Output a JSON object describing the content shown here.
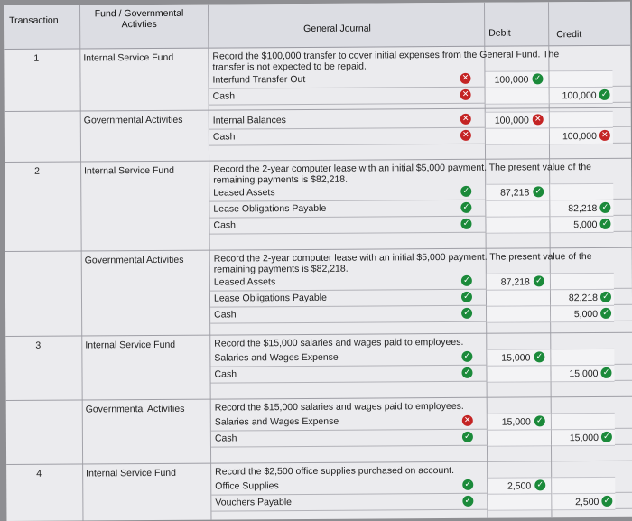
{
  "header": {
    "transaction": "Transaction",
    "fund": "Fund / Governmental\nActivties",
    "journal": "General Journal",
    "debit": "Debit",
    "credit": "Credit"
  },
  "entries": [
    {
      "txn": "1",
      "fund": "Internal Service Fund",
      "desc": "Record the $100,000 transfer to cover initial expenses from the General Fund. The transfer is not expected to be repaid.",
      "lines": [
        {
          "account": "Interfund Transfer Out",
          "status": "wrong",
          "debit": "100,000",
          "debit_status": "correct",
          "credit": "",
          "credit_status": ""
        },
        {
          "account": "Cash",
          "status": "wrong",
          "debit": "",
          "debit_status": "",
          "credit": "100,000",
          "credit_status": "correct"
        }
      ]
    },
    {
      "txn": "",
      "fund": "Governmental Activities",
      "desc": "",
      "lines": [
        {
          "account": "Internal Balances",
          "status": "wrong",
          "debit": "100,000",
          "debit_status": "wrong",
          "credit": "",
          "credit_status": ""
        },
        {
          "account": "Cash",
          "status": "wrong",
          "debit": "",
          "debit_status": "",
          "credit": "100,000",
          "credit_status": "wrong"
        }
      ]
    },
    {
      "txn": "2",
      "fund": "Internal Service Fund",
      "desc": "Record the 2-year computer lease with an initial $5,000 payment. The present value of the remaining payments is $82,218.",
      "lines": [
        {
          "account": "Leased Assets",
          "status": "correct",
          "debit": "87,218",
          "debit_status": "correct",
          "credit": "",
          "credit_status": ""
        },
        {
          "account": "Lease Obligations Payable",
          "status": "correct",
          "debit": "",
          "debit_status": "",
          "credit": "82,218",
          "credit_status": "correct"
        },
        {
          "account": "Cash",
          "status": "correct",
          "debit": "",
          "debit_status": "",
          "credit": "5,000",
          "credit_status": "correct"
        }
      ]
    },
    {
      "txn": "",
      "fund": "Governmental Activities",
      "desc": "Record the 2-year computer lease with an initial $5,000 payment. The present value of the remaining payments is $82,218.",
      "lines": [
        {
          "account": "Leased Assets",
          "status": "correct",
          "debit": "87,218",
          "debit_status": "correct",
          "credit": "",
          "credit_status": ""
        },
        {
          "account": "Lease Obligations Payable",
          "status": "correct",
          "debit": "",
          "debit_status": "",
          "credit": "82,218",
          "credit_status": "correct"
        },
        {
          "account": "Cash",
          "status": "correct",
          "debit": "",
          "debit_status": "",
          "credit": "5,000",
          "credit_status": "correct"
        }
      ]
    },
    {
      "txn": "3",
      "fund": "Internal Service Fund",
      "desc": "Record the $15,000 salaries and wages paid to employees.",
      "lines": [
        {
          "account": "Salaries and Wages Expense",
          "status": "correct",
          "debit": "15,000",
          "debit_status": "correct",
          "credit": "",
          "credit_status": ""
        },
        {
          "account": "Cash",
          "status": "correct",
          "debit": "",
          "debit_status": "",
          "credit": "15,000",
          "credit_status": "correct"
        }
      ]
    },
    {
      "txn": "",
      "fund": "Governmental Activities",
      "desc": "Record the $15,000 salaries and wages paid to employees.",
      "lines": [
        {
          "account": "Salaries and Wages Expense",
          "status": "wrong",
          "debit": "15,000",
          "debit_status": "correct",
          "credit": "",
          "credit_status": ""
        },
        {
          "account": "Cash",
          "status": "correct",
          "debit": "",
          "debit_status": "",
          "credit": "15,000",
          "credit_status": "correct"
        }
      ]
    },
    {
      "txn": "4",
      "fund": "Internal Service Fund",
      "desc": "Record the $2,500 office supplies purchased on account.",
      "lines": [
        {
          "account": "Office Supplies",
          "status": "correct",
          "debit": "2,500",
          "debit_status": "correct",
          "credit": "",
          "credit_status": ""
        },
        {
          "account": "Vouchers Payable",
          "status": "correct",
          "debit": "",
          "debit_status": "",
          "credit": "2,500",
          "credit_status": "correct"
        }
      ]
    }
  ],
  "icons": {
    "correct": "check-circle-icon",
    "wrong": "x-circle-icon"
  },
  "colors": {
    "correct": "#1b8a3a",
    "wrong": "#c42424"
  }
}
